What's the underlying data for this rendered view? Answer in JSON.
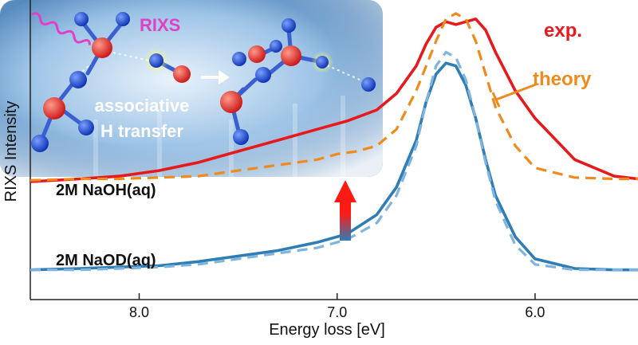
{
  "chart_data": {
    "type": "line",
    "xlabel": "Energy loss [eV]",
    "ylabel": "RIXS Intensity",
    "x_axis_reversed": true,
    "xlim": [
      8.55,
      5.48
    ],
    "ylim": [
      0,
      1
    ],
    "x_ticks": [
      8.0,
      7.0,
      6.0
    ],
    "x_tick_labels": [
      "8.0",
      "7.0",
      "6.0"
    ],
    "grid": false,
    "series": [
      {
        "name": "exp.",
        "sample": "2M NaOH(aq)",
        "color": "#e8191c",
        "style": "solid",
        "x": [
          8.55,
          8.3,
          8.1,
          7.9,
          7.7,
          7.5,
          7.3,
          7.1,
          6.95,
          6.8,
          6.7,
          6.6,
          6.55,
          6.5,
          6.45,
          6.4,
          6.35,
          6.3,
          6.25,
          6.2,
          6.1,
          6.0,
          5.8,
          5.6,
          5.48
        ],
        "y": [
          0.37,
          0.38,
          0.39,
          0.41,
          0.44,
          0.48,
          0.52,
          0.56,
          0.59,
          0.63,
          0.69,
          0.79,
          0.87,
          0.93,
          0.95,
          0.94,
          0.95,
          0.96,
          0.92,
          0.84,
          0.7,
          0.6,
          0.45,
          0.39,
          0.38
        ]
      },
      {
        "name": "theory",
        "sample": "2M NaOH(aq)",
        "color": "#f08a1c",
        "style": "dashed",
        "x": [
          8.55,
          8.3,
          8.1,
          7.9,
          7.7,
          7.5,
          7.3,
          7.1,
          7.0,
          6.9,
          6.8,
          6.7,
          6.6,
          6.5,
          6.45,
          6.4,
          6.35,
          6.3,
          6.25,
          6.2,
          6.1,
          6.0,
          5.8,
          5.6,
          5.48
        ],
        "y": [
          0.375,
          0.38,
          0.38,
          0.385,
          0.39,
          0.41,
          0.43,
          0.45,
          0.47,
          0.48,
          0.5,
          0.56,
          0.7,
          0.88,
          0.96,
          0.98,
          0.96,
          0.88,
          0.76,
          0.64,
          0.5,
          0.42,
          0.385,
          0.38,
          0.38
        ]
      },
      {
        "name": "exp.",
        "sample": "2M NaOD(aq)",
        "color": "#2f7db5",
        "style": "solid",
        "x": [
          8.55,
          8.3,
          8.1,
          7.9,
          7.7,
          7.5,
          7.3,
          7.1,
          6.95,
          6.8,
          6.7,
          6.6,
          6.55,
          6.5,
          6.45,
          6.4,
          6.35,
          6.3,
          6.25,
          6.2,
          6.1,
          6.0,
          5.8,
          5.6,
          5.48
        ],
        "y": [
          0.05,
          0.055,
          0.06,
          0.065,
          0.08,
          0.1,
          0.12,
          0.15,
          0.18,
          0.25,
          0.35,
          0.52,
          0.66,
          0.76,
          0.8,
          0.79,
          0.72,
          0.6,
          0.45,
          0.32,
          0.17,
          0.09,
          0.055,
          0.05,
          0.05
        ]
      },
      {
        "name": "theory",
        "sample": "2M NaOD(aq)",
        "color": "#7fb4df",
        "style": "dashed",
        "x": [
          8.55,
          8.3,
          8.1,
          7.9,
          7.7,
          7.5,
          7.3,
          7.1,
          6.95,
          6.8,
          6.7,
          6.6,
          6.55,
          6.5,
          6.45,
          6.4,
          6.35,
          6.3,
          6.25,
          6.2,
          6.1,
          6.0,
          5.8,
          5.6,
          5.48
        ],
        "y": [
          0.05,
          0.05,
          0.055,
          0.06,
          0.07,
          0.09,
          0.11,
          0.13,
          0.16,
          0.22,
          0.32,
          0.5,
          0.66,
          0.79,
          0.84,
          0.82,
          0.74,
          0.6,
          0.44,
          0.3,
          0.14,
          0.07,
          0.05,
          0.05,
          0.05
        ]
      }
    ],
    "annotations": {
      "exp_label": "exp.",
      "theory_label": "theory",
      "naoh_label": "2M NaOH(aq)",
      "naod_label": "2M NaOD(aq)"
    },
    "inset": {
      "rixs_label": "RIXS",
      "caption_line1": "associative",
      "caption_line2": "H transfer"
    },
    "colors": {
      "exp_red": "#e8191c",
      "theory_orange": "#f08a1c",
      "naod_blue": "#2f7db5",
      "naod_theory_blue": "#7fb4df",
      "rixs_magenta": "#e040c8"
    }
  }
}
